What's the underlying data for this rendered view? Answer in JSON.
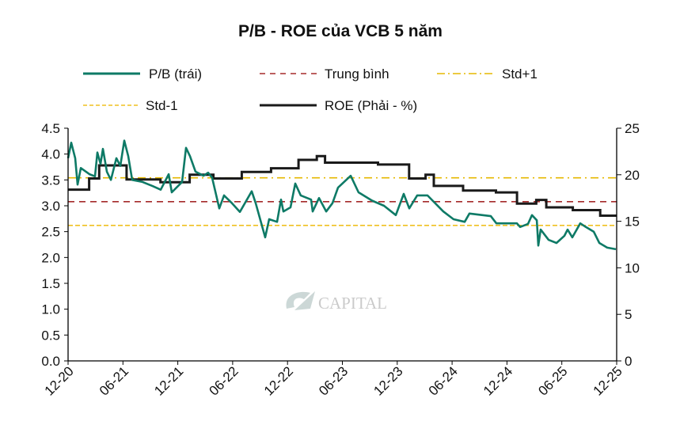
{
  "chart_data": {
    "type": "line",
    "title": "P/B - ROE của VCB 5 năm",
    "x_unit": "months since 12-2020",
    "x_ticks": [
      {
        "m": 0,
        "label": "12-20"
      },
      {
        "m": 6,
        "label": "06-21"
      },
      {
        "m": 12,
        "label": "12-21"
      },
      {
        "m": 18,
        "label": "06-22"
      },
      {
        "m": 24,
        "label": "12-22"
      },
      {
        "m": 30,
        "label": "06-23"
      },
      {
        "m": 36,
        "label": "12-23"
      },
      {
        "m": 42,
        "label": "06-24"
      },
      {
        "m": 48,
        "label": "12-24"
      },
      {
        "m": 54,
        "label": "06-25"
      },
      {
        "m": 60,
        "label": "12-25"
      }
    ],
    "xlim": [
      0,
      60
    ],
    "y_left": {
      "lim": [
        0,
        4.5
      ],
      "ticks": [
        "0.0",
        "0.5",
        "1.0",
        "1.5",
        "2.0",
        "2.5",
        "3.0",
        "3.5",
        "4.0",
        "4.5"
      ]
    },
    "y_right": {
      "lim": [
        0,
        25
      ],
      "ticks": [
        "0",
        "5",
        "10",
        "15",
        "20",
        "25"
      ]
    },
    "legend": {
      "pb": "P/B (trái)",
      "mean": "Trung bình",
      "std_plus": "Std+1",
      "std_minus": "Std-1",
      "roe": "ROE (Phải - %)"
    },
    "legend_placement": "top",
    "colors": {
      "pb": "#0e7a66",
      "mean": "#a52a2a",
      "std_plus": "#e6b800",
      "std_minus": "#f0c020",
      "roe": "#1a1a1a"
    },
    "reference_lines": {
      "mean": 3.08,
      "std_plus": 3.54,
      "std_minus": 2.62
    },
    "pb_series": [
      [
        0,
        3.92
      ],
      [
        0.35,
        4.22
      ],
      [
        0.78,
        3.92
      ],
      [
        1.04,
        3.41
      ],
      [
        1.39,
        3.73
      ],
      [
        2.34,
        3.61
      ],
      [
        2.94,
        3.57
      ],
      [
        3.2,
        4.03
      ],
      [
        3.55,
        3.81
      ],
      [
        3.81,
        4.1
      ],
      [
        4.24,
        3.66
      ],
      [
        4.68,
        3.5
      ],
      [
        5.28,
        3.92
      ],
      [
        5.71,
        3.77
      ],
      [
        6.15,
        4.26
      ],
      [
        6.58,
        3.96
      ],
      [
        7.01,
        3.5
      ],
      [
        8.14,
        3.46
      ],
      [
        9.26,
        3.38
      ],
      [
        10.13,
        3.31
      ],
      [
        11.0,
        3.61
      ],
      [
        11.34,
        3.26
      ],
      [
        12.47,
        3.46
      ],
      [
        12.9,
        4.12
      ],
      [
        13.33,
        3.96
      ],
      [
        13.94,
        3.66
      ],
      [
        14.81,
        3.58
      ],
      [
        15.32,
        3.64
      ],
      [
        15.76,
        3.54
      ],
      [
        16.54,
        2.95
      ],
      [
        17.06,
        3.2
      ],
      [
        17.92,
        3.05
      ],
      [
        18.79,
        2.88
      ],
      [
        20.09,
        3.28
      ],
      [
        20.52,
        3.05
      ],
      [
        21.56,
        2.39
      ],
      [
        21.99,
        2.74
      ],
      [
        22.86,
        2.69
      ],
      [
        23.29,
        3.12
      ],
      [
        23.55,
        2.89
      ],
      [
        24.33,
        2.97
      ],
      [
        24.85,
        3.43
      ],
      [
        25.45,
        3.2
      ],
      [
        26.58,
        3.12
      ],
      [
        26.75,
        2.89
      ],
      [
        27.45,
        3.15
      ],
      [
        28.23,
        2.89
      ],
      [
        28.92,
        3.05
      ],
      [
        29.52,
        3.35
      ],
      [
        30.91,
        3.58
      ],
      [
        31.77,
        3.26
      ],
      [
        33.25,
        3.1
      ],
      [
        34.55,
        3.0
      ],
      [
        35.84,
        2.82
      ],
      [
        36.71,
        3.23
      ],
      [
        37.32,
        2.95
      ],
      [
        38.18,
        3.2
      ],
      [
        39.31,
        3.2
      ],
      [
        41.04,
        2.89
      ],
      [
        42.16,
        2.74
      ],
      [
        43.38,
        2.69
      ],
      [
        43.9,
        2.85
      ],
      [
        46.23,
        2.8
      ],
      [
        46.84,
        2.66
      ],
      [
        49.09,
        2.66
      ],
      [
        49.44,
        2.59
      ],
      [
        50.3,
        2.65
      ],
      [
        50.74,
        2.82
      ],
      [
        51.26,
        2.72
      ],
      [
        51.43,
        2.23
      ],
      [
        51.69,
        2.54
      ],
      [
        52.55,
        2.34
      ],
      [
        53.42,
        2.28
      ],
      [
        54.29,
        2.42
      ],
      [
        54.63,
        2.54
      ],
      [
        55.15,
        2.39
      ],
      [
        56.02,
        2.66
      ],
      [
        56.62,
        2.59
      ],
      [
        57.49,
        2.5
      ],
      [
        58.1,
        2.28
      ],
      [
        58.96,
        2.19
      ],
      [
        59.91,
        2.16
      ]
    ],
    "roe_steps": [
      [
        0,
        2.3,
        18.4
      ],
      [
        2.3,
        3.4,
        19.6
      ],
      [
        3.4,
        6.4,
        21.0
      ],
      [
        6.4,
        10.1,
        19.5
      ],
      [
        10.1,
        13.3,
        19.2
      ],
      [
        13.3,
        15.9,
        20.0
      ],
      [
        15.9,
        19.0,
        19.6
      ],
      [
        19.0,
        22.2,
        20.3
      ],
      [
        22.2,
        25.2,
        20.7
      ],
      [
        25.2,
        27.2,
        21.6
      ],
      [
        27.2,
        28.1,
        22.0
      ],
      [
        28.1,
        33.9,
        21.3
      ],
      [
        33.9,
        37.3,
        21.1
      ],
      [
        37.3,
        39.1,
        19.6
      ],
      [
        39.1,
        40.0,
        20.0
      ],
      [
        40.0,
        43.2,
        18.8
      ],
      [
        43.2,
        46.8,
        18.3
      ],
      [
        46.8,
        49.1,
        18.1
      ],
      [
        49.1,
        51.2,
        16.9
      ],
      [
        51.2,
        52.3,
        17.3
      ],
      [
        52.3,
        55.2,
        16.5
      ],
      [
        55.2,
        58.2,
        16.2
      ],
      [
        58.2,
        60,
        15.6
      ]
    ],
    "watermark": "CAPITAL"
  }
}
